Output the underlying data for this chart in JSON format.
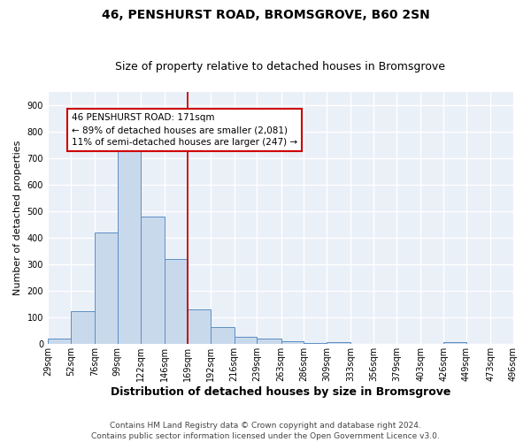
{
  "title": "46, PENSHURST ROAD, BROMSGROVE, B60 2SN",
  "subtitle": "Size of property relative to detached houses in Bromsgrove",
  "xlabel": "Distribution of detached houses by size in Bromsgrove",
  "ylabel": "Number of detached properties",
  "bins": [
    29,
    52,
    76,
    99,
    122,
    146,
    169,
    192,
    216,
    239,
    263,
    286,
    309,
    333,
    356,
    379,
    403,
    426,
    449,
    473,
    496
  ],
  "counts": [
    20,
    125,
    420,
    730,
    480,
    320,
    130,
    65,
    28,
    22,
    10,
    5,
    8,
    0,
    0,
    0,
    0,
    8,
    0,
    0
  ],
  "bar_facecolor": "#c9d9ec",
  "bar_edgecolor": "#5b8ec4",
  "property_line_x": 169,
  "property_line_color": "#cc0000",
  "annotation_text": "46 PENSHURST ROAD: 171sqm\n← 89% of detached houses are smaller (2,081)\n11% of semi-detached houses are larger (247) →",
  "annotation_box_facecolor": "white",
  "annotation_box_edgecolor": "#cc0000",
  "ylim": [
    0,
    950
  ],
  "yticks": [
    0,
    100,
    200,
    300,
    400,
    500,
    600,
    700,
    800,
    900
  ],
  "background_color": "#eaf0f8",
  "grid_color": "white",
  "footer": "Contains HM Land Registry data © Crown copyright and database right 2024.\nContains public sector information licensed under the Open Government Licence v3.0.",
  "title_fontsize": 10,
  "subtitle_fontsize": 9,
  "xlabel_fontsize": 9,
  "ylabel_fontsize": 8,
  "tick_labelsize": 7,
  "footer_fontsize": 6.5,
  "ann_fontsize": 7.5
}
